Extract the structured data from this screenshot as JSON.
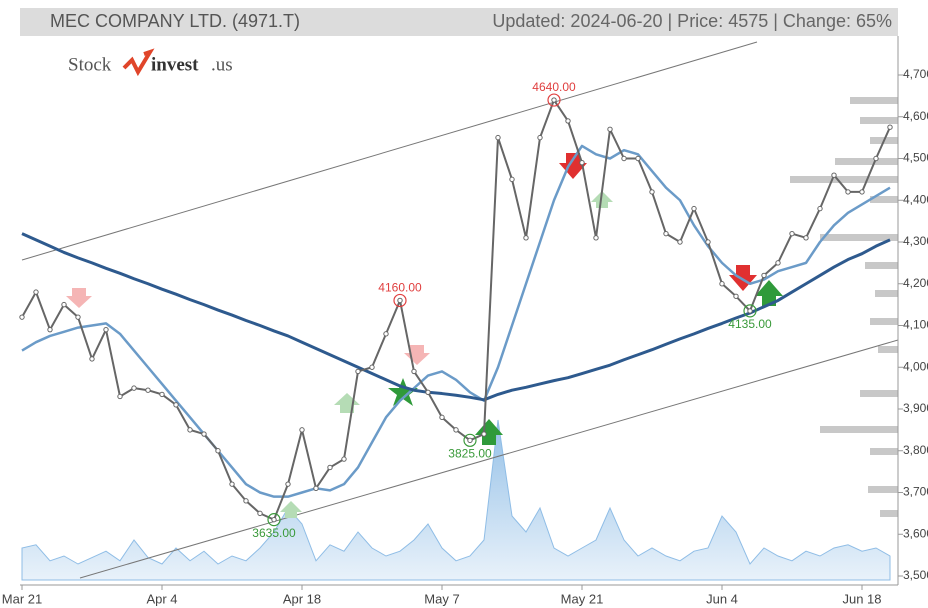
{
  "header": {
    "title": "MEC COMPANY LTD. (4971.T)",
    "info": "Updated: 2024-06-20 | Price: 4575 | Change: 65%"
  },
  "logo": {
    "left": "Stock",
    "right": "invest",
    "suffix": ".us"
  },
  "chart_data": {
    "type": "line",
    "xlim": [
      0,
      62
    ],
    "ylim": [
      3500,
      4700
    ],
    "yticks": [
      {
        "value": 3500,
        "label": "3,500"
      },
      {
        "value": 3600,
        "label": "3,600"
      },
      {
        "value": 3700,
        "label": "3,700"
      },
      {
        "value": 3800,
        "label": "3,800"
      },
      {
        "value": 3900,
        "label": "3,900"
      },
      {
        "value": 4000,
        "label": "4,000"
      },
      {
        "value": 4100,
        "label": "4,100"
      },
      {
        "value": 4200,
        "label": "4,200"
      },
      {
        "value": 4300,
        "label": "4,300"
      },
      {
        "value": 4400,
        "label": "4,400"
      },
      {
        "value": 4500,
        "label": "4,500"
      },
      {
        "value": 4600,
        "label": "4,600"
      },
      {
        "value": 4700,
        "label": "4,700"
      }
    ],
    "xticks": [
      {
        "value": 0,
        "label": "Mar 21"
      },
      {
        "value": 10,
        "label": "Apr 4"
      },
      {
        "value": 20,
        "label": "Apr 18"
      },
      {
        "value": 30,
        "label": "May 7"
      },
      {
        "value": 40,
        "label": "May 21"
      },
      {
        "value": 50,
        "label": "Jun 4"
      },
      {
        "value": 60,
        "label": "Jun 18"
      }
    ],
    "series": [
      {
        "color": "#6b9bc8",
        "width": 2.5,
        "values": [
          4040,
          4060,
          4075,
          4085,
          4095,
          4100,
          4105,
          4080,
          4040,
          4000,
          3960,
          3920,
          3880,
          3840,
          3800,
          3760,
          3720,
          3700,
          3690,
          3690,
          3700,
          3710,
          3705,
          3720,
          3760,
          3820,
          3880,
          3920,
          3950,
          3980,
          3990,
          3970,
          3940,
          3920,
          4000,
          4100,
          4200,
          4300,
          4400,
          4480,
          4530,
          4510,
          4500,
          4520,
          4510,
          4470,
          4430,
          4400,
          4340,
          4290,
          4250,
          4220,
          4200,
          4210,
          4230,
          4240,
          4250,
          4300,
          4340,
          4370,
          4390,
          4410,
          4430
        ]
      },
      {
        "color": "#2e5a8e",
        "width": 3,
        "values": [
          4320,
          4305,
          4290,
          4275,
          4262,
          4250,
          4237,
          4225,
          4212,
          4200,
          4187,
          4175,
          4162,
          4150,
          4137,
          4125,
          4112,
          4100,
          4087,
          4075,
          4060,
          4045,
          4030,
          4015,
          4000,
          3985,
          3970,
          3955,
          3945,
          3940,
          3937,
          3933,
          3928,
          3922,
          3935,
          3945,
          3952,
          3960,
          3968,
          3975,
          3985,
          3995,
          4005,
          4018,
          4030,
          4042,
          4055,
          4068,
          4080,
          4093,
          4105,
          4118,
          4130,
          4145,
          4160,
          4180,
          4200,
          4220,
          4240,
          4258,
          4272,
          4290,
          4305
        ]
      },
      {
        "color": "#666666",
        "width": 2,
        "markers": true,
        "values": [
          4120,
          4180,
          4090,
          4150,
          4120,
          4020,
          4090,
          3930,
          3950,
          3945,
          3935,
          3910,
          3850,
          3840,
          3800,
          3720,
          3680,
          3650,
          3635,
          3720,
          3850,
          3710,
          3760,
          3780,
          3990,
          4000,
          4080,
          4160,
          3990,
          3940,
          3880,
          3850,
          3825,
          3840,
          4550,
          4450,
          4310,
          4550,
          4640,
          4590,
          4490,
          4310,
          4570,
          4500,
          4500,
          4420,
          4320,
          4300,
          4380,
          4300,
          4200,
          4170,
          4135,
          4220,
          4250,
          4320,
          4310,
          4380,
          4460,
          4420,
          4420,
          4500,
          4575
        ]
      }
    ],
    "volume": {
      "color": "#8fbde6",
      "vlim": [
        0,
        100
      ],
      "values": [
        20,
        22,
        12,
        15,
        10,
        14,
        18,
        12,
        25,
        14,
        10,
        20,
        12,
        18,
        10,
        15,
        12,
        20,
        30,
        45,
        35,
        12,
        22,
        18,
        30,
        20,
        15,
        18,
        25,
        35,
        20,
        12,
        15,
        25,
        100,
        40,
        30,
        45,
        20,
        15,
        20,
        25,
        45,
        25,
        15,
        20,
        15,
        12,
        18,
        20,
        40,
        30,
        10,
        20,
        15,
        12,
        18,
        15,
        20,
        22,
        18,
        20,
        15
      ]
    },
    "annotations": [
      {
        "label": "4640.00",
        "index": 38,
        "value": 4640,
        "color": "#e04040",
        "position": "above"
      },
      {
        "label": "4160.00",
        "index": 27,
        "value": 4160,
        "color": "#e04040",
        "position": "above"
      },
      {
        "label": "3635.00",
        "index": 18,
        "value": 3635,
        "color": "#3a9a3a",
        "position": "below"
      },
      {
        "label": "3825.00",
        "index": 32,
        "value": 3825,
        "color": "#3a9a3a",
        "position": "below"
      },
      {
        "label": "4135.00",
        "index": 52,
        "value": 4135,
        "color": "#3a9a3a",
        "position": "below"
      }
    ]
  }
}
